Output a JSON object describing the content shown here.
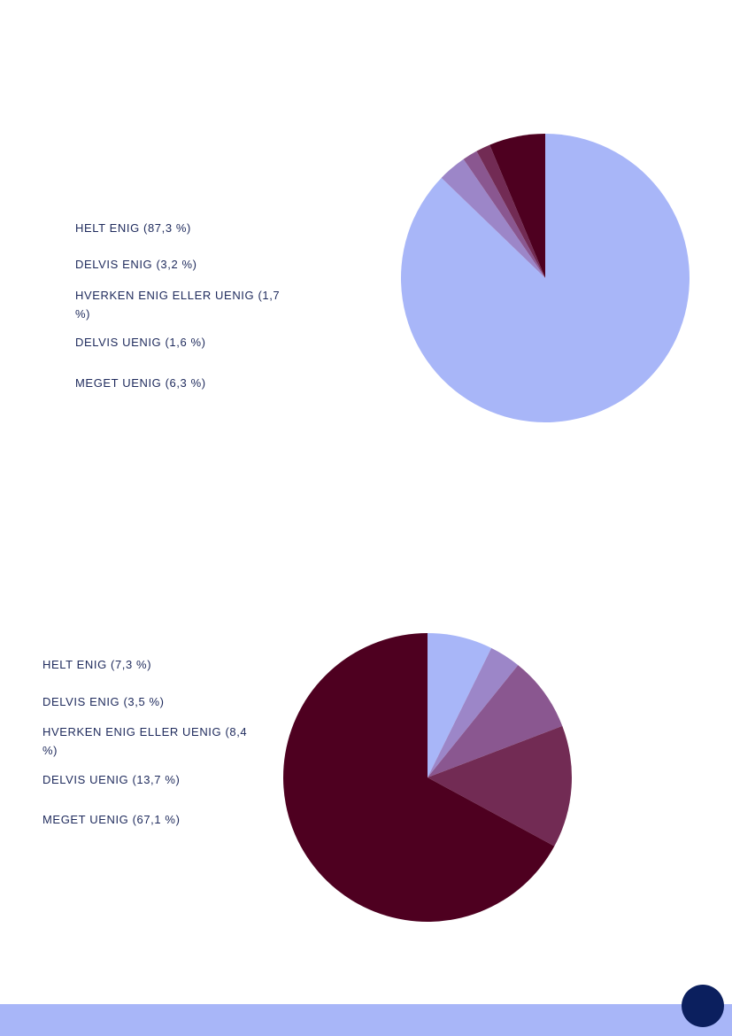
{
  "chart_data": [
    {
      "type": "pie",
      "start_angle_deg": 0,
      "direction": "clockwise",
      "slices": [
        {
          "label": "HELT ENIG (87,3 %)",
          "value": 87.3,
          "color": "#a8b6f8"
        },
        {
          "label": "DELVIS ENIG (3,2 %)",
          "value": 3.2,
          "color": "#9c86c8"
        },
        {
          "label": "HVERKEN ENIG ELLER UENIG (1,7 %)",
          "value": 1.7,
          "color": "#8a5790"
        },
        {
          "label": "DELVIS UENIG (1,6 %)",
          "value": 1.6,
          "color": "#722b54"
        },
        {
          "label": "MEGET UENIG (6,3 %)",
          "value": 6.3,
          "color": "#4e0020"
        }
      ]
    },
    {
      "type": "pie",
      "start_angle_deg": 0,
      "direction": "clockwise",
      "slices": [
        {
          "label": "HELT ENIG (7,3 %)",
          "value": 7.3,
          "color": "#a8b6f8"
        },
        {
          "label": "DELVIS ENIG (3,5 %)",
          "value": 3.5,
          "color": "#9c86c8"
        },
        {
          "label": "HVERKEN ENIG ELLER UENIG (8,4 %)",
          "value": 8.4,
          "color": "#8a5790"
        },
        {
          "label": "DELVIS UENIG (13,7 %)",
          "value": 13.7,
          "color": "#722b54"
        },
        {
          "label": "MEGET UENIG (67,1 %)",
          "value": 67.1,
          "color": "#4e0020"
        }
      ]
    }
  ],
  "footer": {
    "band_color": "#a8b6f8",
    "page_marker_color": "#0b1f5e"
  }
}
